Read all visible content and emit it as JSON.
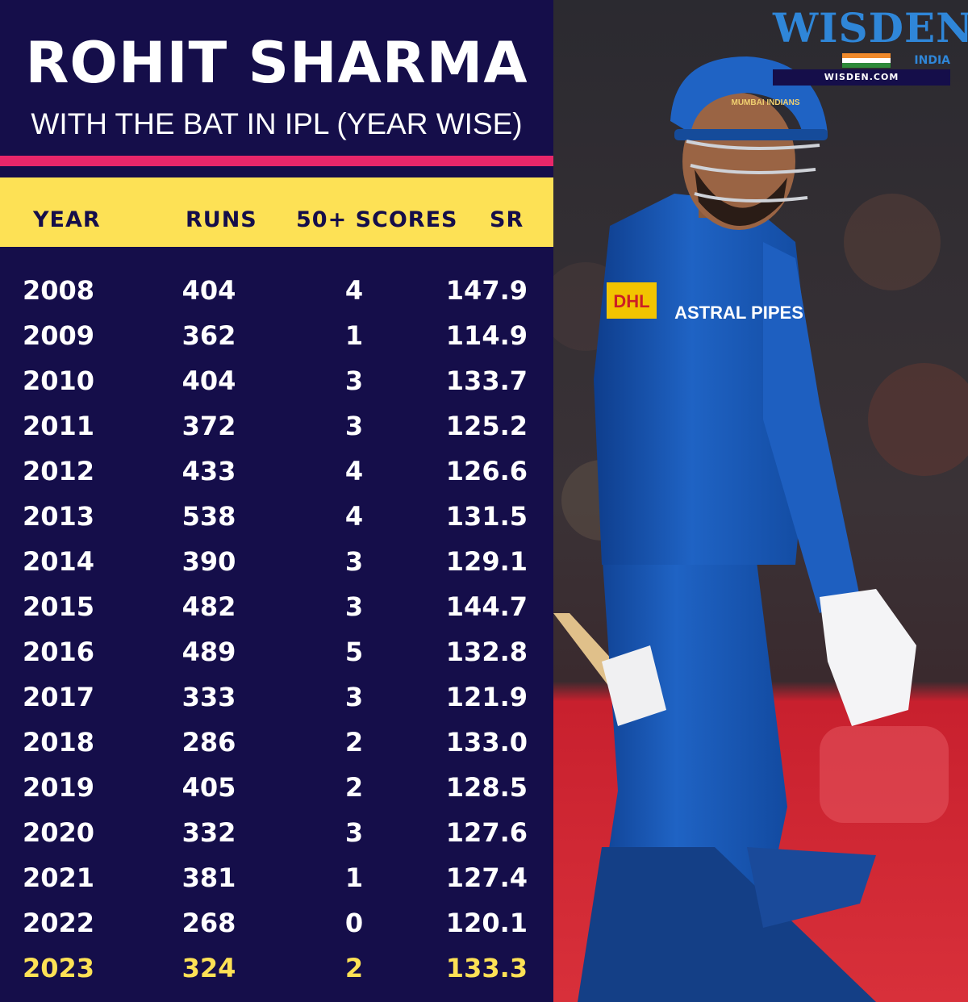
{
  "title": "ROHIT SHARMA",
  "subtitle": "WITH THE BAT IN IPL (YEAR WISE)",
  "brand": {
    "name": "WISDEN",
    "sub": "INDIA",
    "url": "WISDEN.COM",
    "color": "#2f86d8"
  },
  "photo": {
    "jersey_text": "ASTRAL PIPES",
    "sponsor": "DHL",
    "helmet_logo": "MUMBAI INDIANS"
  },
  "colors": {
    "background": "#150e4a",
    "accent_stripe": "#e8266a",
    "header_band": "#fde155",
    "highlight": "#fde155",
    "text": "#ffffff"
  },
  "table": {
    "headers": [
      "YEAR",
      "RUNS",
      "50+ SCORES",
      "SR"
    ],
    "rows": [
      [
        "2008",
        "404",
        "4",
        "147.9"
      ],
      [
        "2009",
        "362",
        "1",
        "114.9"
      ],
      [
        "2010",
        "404",
        "3",
        "133.7"
      ],
      [
        "2011",
        "372",
        "3",
        "125.2"
      ],
      [
        "2012",
        "433",
        "4",
        "126.6"
      ],
      [
        "2013",
        "538",
        "4",
        "131.5"
      ],
      [
        "2014",
        "390",
        "3",
        "129.1"
      ],
      [
        "2015",
        "482",
        "3",
        "144.7"
      ],
      [
        "2016",
        "489",
        "5",
        "132.8"
      ],
      [
        "2017",
        "333",
        "3",
        "121.9"
      ],
      [
        "2018",
        "286",
        "2",
        "133.0"
      ],
      [
        "2019",
        "405",
        "2",
        "128.5"
      ],
      [
        "2020",
        "332",
        "3",
        "127.6"
      ],
      [
        "2021",
        "381",
        "1",
        "127.4"
      ],
      [
        "2022",
        "268",
        "0",
        "120.1"
      ],
      [
        "2023",
        "324",
        "2",
        "133.3"
      ]
    ],
    "highlight_row": 15
  }
}
